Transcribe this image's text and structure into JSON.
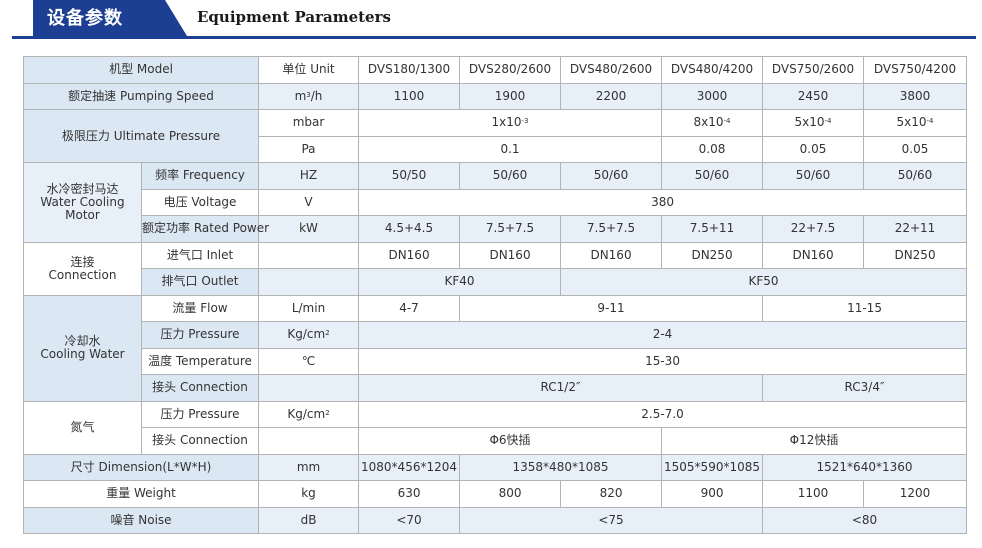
{
  "header": {
    "cn_title": "设备参数",
    "en_title": "Equipment Parameters",
    "chevron": "chevron-right-icon",
    "accent": "#1c3f93"
  },
  "table": {
    "model_label": "机型 Model",
    "unit_header": "单位 Unit",
    "models": [
      "DVS180/1300",
      "DVS280/2600",
      "DVS480/2600",
      "DVS480/4200",
      "DVS750/2600",
      "DVS750/4200"
    ],
    "speed": {
      "label": "额定抽速 Pumping Speed",
      "unit_base": "m",
      "unit_sup": "3",
      "unit_tail": "/h",
      "values": [
        "1100",
        "1900",
        "2200",
        "3000",
        "2450",
        "3800"
      ]
    },
    "ultimate": {
      "label": "极限压力 Ultimate Pressure",
      "mbar": {
        "unit": "mbar",
        "merged": {
          "base": "1x10",
          "exp": "-3"
        },
        "v4": {
          "base": "8x10",
          "exp": "-4"
        },
        "v5": {
          "base": "5x10",
          "exp": "-4"
        },
        "v6": {
          "base": "5x10",
          "exp": "-4"
        }
      },
      "pa": {
        "unit": "Pa",
        "merged": "0.1",
        "v4": "0.08",
        "v5": "0.05",
        "v6": "0.05"
      }
    },
    "motor": {
      "label_cn": "水冷密封马达",
      "label_en": "Water Cooling Motor",
      "frequency": {
        "label": "频率 Frequency",
        "unit": "HZ",
        "values": [
          "50/50",
          "50/60",
          "50/60",
          "50/60",
          "50/60",
          "50/60"
        ]
      },
      "voltage": {
        "label": "电压 Voltage",
        "unit": "V",
        "value": "380"
      },
      "power": {
        "label": "额定功率 Rated Power",
        "unit": "kW",
        "values": [
          "4.5+4.5",
          "7.5+7.5",
          "7.5+7.5",
          "7.5+11",
          "22+7.5",
          "22+11"
        ]
      }
    },
    "connection": {
      "label_cn": "连接",
      "label_en": "Connection",
      "inlet": {
        "label": "进气口 Inlet",
        "values": [
          "DN160",
          "DN160",
          "DN160",
          "DN250",
          "DN160",
          "DN250"
        ]
      },
      "outlet": {
        "label": "排气口 Outlet",
        "a": "KF40",
        "b": "KF50"
      }
    },
    "cooling": {
      "label_cn": "冷却水",
      "label_en": "Cooling Water",
      "flow": {
        "label": "流量 Flow",
        "unit": "L/min",
        "a": "4-7",
        "b": "9-11",
        "c": "11-15"
      },
      "pressure": {
        "label": "压力 Pressure",
        "unit_base": "Kg/cm",
        "unit_sup": "2",
        "value": "2-4"
      },
      "temperature": {
        "label": "温度 Temperature",
        "unit": "℃",
        "value": "15-30"
      },
      "fitting": {
        "label": "接头 Connection",
        "a": "RC1/2″",
        "b": "RC3/4″"
      }
    },
    "nitrogen": {
      "label": "氮气",
      "pressure": {
        "label": "压力 Pressure",
        "unit_base": "Kg/cm",
        "unit_sup": "2",
        "value": "2.5-7.0"
      },
      "fitting": {
        "label": "接头 Connection",
        "a": "Φ6快插",
        "b": "Φ12快插"
      }
    },
    "dimension": {
      "label": "尺寸 Dimension(L*W*H)",
      "unit": "mm",
      "a": "1080*456*1204",
      "b": "1358*480*1085",
      "c": "1505*590*1085",
      "d": "1521*640*1360"
    },
    "weight": {
      "label": "重量 Weight",
      "unit": "kg",
      "values": [
        "630",
        "800",
        "820",
        "900",
        "1100",
        "1200"
      ]
    },
    "noise": {
      "label": "噪音 Noise",
      "unit": "dB",
      "a": "<70",
      "b": "<75",
      "c": "<80"
    }
  }
}
